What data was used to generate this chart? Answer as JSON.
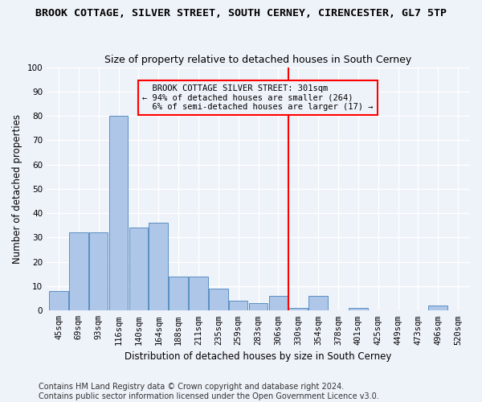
{
  "title": "BROOK COTTAGE, SILVER STREET, SOUTH CERNEY, CIRENCESTER, GL7 5TP",
  "subtitle": "Size of property relative to detached houses in South Cerney",
  "xlabel": "Distribution of detached houses by size in South Cerney",
  "ylabel": "Number of detached properties",
  "footnote": "Contains HM Land Registry data © Crown copyright and database right 2024.\nContains public sector information licensed under the Open Government Licence v3.0.",
  "bar_labels": [
    "45sqm",
    "69sqm",
    "93sqm",
    "116sqm",
    "140sqm",
    "164sqm",
    "188sqm",
    "211sqm",
    "235sqm",
    "259sqm",
    "283sqm",
    "306sqm",
    "330sqm",
    "354sqm",
    "378sqm",
    "401sqm",
    "425sqm",
    "449sqm",
    "473sqm",
    "496sqm",
    "520sqm"
  ],
  "bar_values": [
    8,
    32,
    32,
    80,
    34,
    36,
    14,
    14,
    9,
    4,
    3,
    6,
    1,
    6,
    0,
    1,
    0,
    0,
    0,
    2,
    0
  ],
  "bar_color": "#aec6e8",
  "bar_edge_color": "#5a8fc2",
  "vline_x": 11.5,
  "vline_color": "red",
  "annotation_text": "  BROOK COTTAGE SILVER STREET: 301sqm\n← 94% of detached houses are smaller (264)\n  6% of semi-detached houses are larger (17) →",
  "annotation_box_color": "red",
  "background_color": "#eef2f9",
  "grid_color": "#ffffff",
  "ylim": [
    0,
    100
  ],
  "yticks": [
    0,
    10,
    20,
    30,
    40,
    50,
    60,
    70,
    80,
    90,
    100
  ],
  "title_fontsize": 9.5,
  "subtitle_fontsize": 9,
  "ylabel_fontsize": 8.5,
  "xlabel_fontsize": 8.5,
  "tick_fontsize": 7.5,
  "footnote_fontsize": 7
}
